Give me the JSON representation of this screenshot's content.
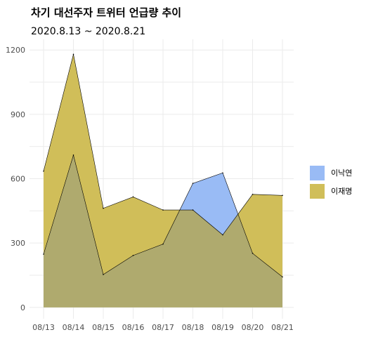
{
  "chart_data": {
    "type": "area",
    "title": "차기 대선주자 트위터 언급량 추이",
    "subtitle": "2020.8.13 ~ 2020.8.21",
    "xlabel": "",
    "ylabel": "",
    "categories": [
      "08/13",
      "08/14",
      "08/15",
      "08/16",
      "08/17",
      "08/18",
      "08/19",
      "08/20",
      "08/21"
    ],
    "yticks": [
      0,
      300,
      600,
      900,
      1200
    ],
    "ylim": [
      -40,
      1240
    ],
    "grid": true,
    "legend_position": "right",
    "series": [
      {
        "name": "이낙연",
        "color": "#99BBF5",
        "values": [
          248,
          710,
          153,
          242,
          295,
          578,
          627,
          252,
          142
        ]
      },
      {
        "name": "이재명",
        "color": "#D0BE59",
        "values": [
          635,
          1180,
          462,
          515,
          454,
          454,
          338,
          527,
          522
        ]
      }
    ],
    "overlap_color": "#AFAA6E"
  }
}
